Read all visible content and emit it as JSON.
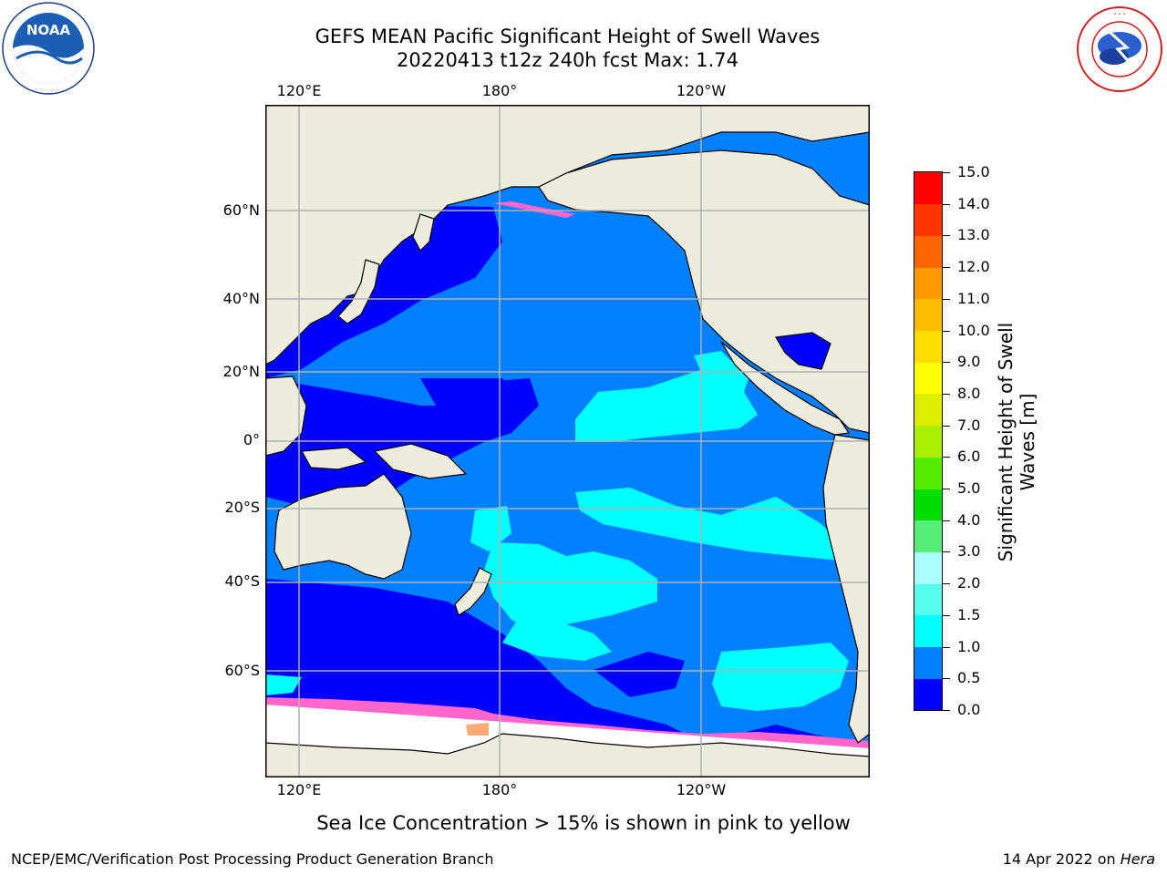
{
  "title_line1": "GEFS MEAN Pacific Significant Height of Swell Waves",
  "title_line2": "20220413 t12z 240h fcst   Max: 1.74",
  "logos": {
    "left": {
      "icon": "noaa-logo",
      "text": "NOAA",
      "ring_text": "NATIONAL OCEANIC AND ATMOSPHERIC ADMINISTRATION · U.S. DEPARTMENT OF COMMERCE"
    },
    "right": {
      "icon": "nws-logo",
      "ring_text": "NATIONAL WEATHER SERVICE"
    }
  },
  "map": {
    "projection": "cylindrical",
    "lon_ticks_top": [
      "120°E",
      "180°",
      "120°W"
    ],
    "lon_ticks_bottom": [
      "120°E",
      "180°",
      "120°W"
    ],
    "lat_ticks": [
      "60°N",
      "40°N",
      "20°N",
      "0°",
      "20°S",
      "40°S",
      "60°S"
    ],
    "grid": true,
    "land_color": "#eeecdc",
    "colors": {
      "band_0_0_5": "#0000ff",
      "band_0_5_1_0": "#0080ff",
      "band_1_0_1_5": "#00ffff",
      "sea_ice": "#ff66cc",
      "ice_shelf": "#ffffff"
    }
  },
  "colorbar": {
    "title": "Significant Height of Swell Waves [m]",
    "title_line1": "Significant Height of Swell",
    "title_line2": "Waves [m]",
    "ticks": [
      "15.0",
      "14.0",
      "13.0",
      "12.0",
      "11.0",
      "10.0",
      "9.0",
      "8.0",
      "7.0",
      "6.0",
      "5.0",
      "4.0",
      "3.0",
      "2.0",
      "1.5",
      "1.0",
      "0.5",
      "0.0"
    ],
    "colors_bottom_to_top": [
      "#0000ff",
      "#0080ff",
      "#00ffff",
      "#55ffee",
      "#aaffff",
      "#55ee77",
      "#00dd00",
      "#55ee00",
      "#aaee00",
      "#ddee00",
      "#ffff00",
      "#ffdd00",
      "#ffbb00",
      "#ff9900",
      "#ff6600",
      "#ff3300",
      "#ff0000"
    ]
  },
  "ice_note": "Sea Ice Concentration > 15% is shown in pink to yellow",
  "footer": {
    "left": "NCEP/EMC/Verification Post Processing Product Generation Branch",
    "right_prefix": "14 Apr 2022 on ",
    "right_machine": "Hera"
  }
}
